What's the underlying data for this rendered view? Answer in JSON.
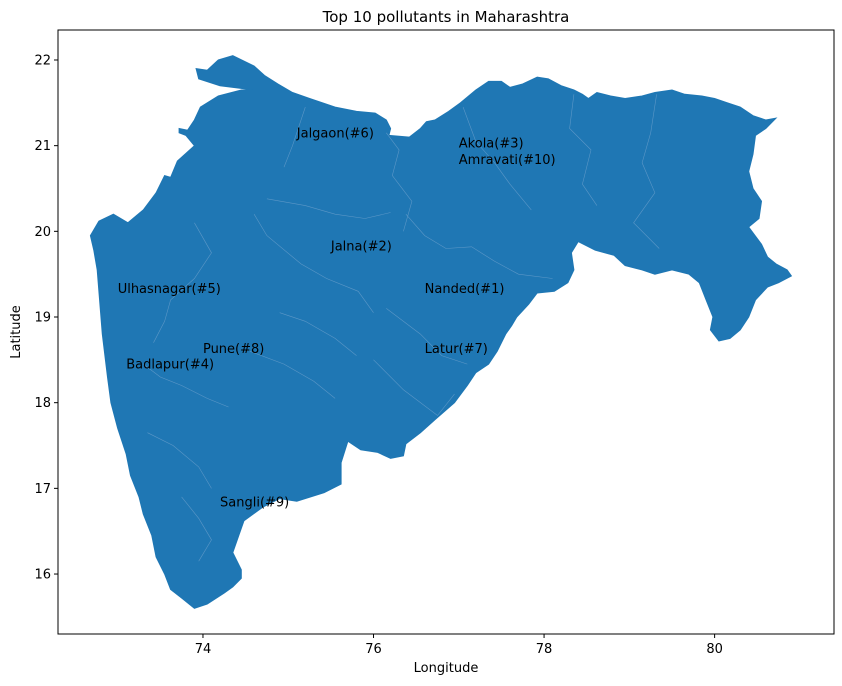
{
  "title": "Top 10 pollutants in Maharashtra",
  "xlabel": "Longitude",
  "ylabel": "Latitude",
  "colors": {
    "fill": "#1f77b4",
    "border": "#5b97c7",
    "axes": "#000000"
  },
  "map": {
    "xlim": [
      72.3,
      81.4
    ],
    "ylim": [
      15.3,
      22.35
    ],
    "outline": [
      [
        72.68,
        19.95
      ],
      [
        72.78,
        20.12
      ],
      [
        72.95,
        20.2
      ],
      [
        73.12,
        20.1
      ],
      [
        73.3,
        20.25
      ],
      [
        73.45,
        20.45
      ],
      [
        73.55,
        20.65
      ],
      [
        73.62,
        20.63
      ],
      [
        73.7,
        20.82
      ],
      [
        73.9,
        21.0
      ],
      [
        73.8,
        21.12
      ],
      [
        73.72,
        21.15
      ],
      [
        73.72,
        21.2
      ],
      [
        73.82,
        21.18
      ],
      [
        73.9,
        21.3
      ],
      [
        73.97,
        21.45
      ],
      [
        74.18,
        21.58
      ],
      [
        74.45,
        21.65
      ],
      [
        74.6,
        21.65
      ],
      [
        74.2,
        21.7
      ],
      [
        73.95,
        21.78
      ],
      [
        73.92,
        21.9
      ],
      [
        74.05,
        21.88
      ],
      [
        74.18,
        22.0
      ],
      [
        74.35,
        22.05
      ],
      [
        74.6,
        21.93
      ],
      [
        74.72,
        21.82
      ],
      [
        74.88,
        21.72
      ],
      [
        75.05,
        21.62
      ],
      [
        75.25,
        21.55
      ],
      [
        75.55,
        21.45
      ],
      [
        75.8,
        21.4
      ],
      [
        76.02,
        21.38
      ],
      [
        76.15,
        21.3
      ],
      [
        76.2,
        21.2
      ],
      [
        76.18,
        21.12
      ],
      [
        76.42,
        21.1
      ],
      [
        76.55,
        21.2
      ],
      [
        76.62,
        21.28
      ],
      [
        76.72,
        21.3
      ],
      [
        76.88,
        21.4
      ],
      [
        77.02,
        21.5
      ],
      [
        77.2,
        21.65
      ],
      [
        77.35,
        21.75
      ],
      [
        77.5,
        21.75
      ],
      [
        77.6,
        21.68
      ],
      [
        77.75,
        21.72
      ],
      [
        77.92,
        21.8
      ],
      [
        78.05,
        21.78
      ],
      [
        78.2,
        21.7
      ],
      [
        78.35,
        21.65
      ],
      [
        78.45,
        21.6
      ],
      [
        78.52,
        21.55
      ],
      [
        78.62,
        21.62
      ],
      [
        78.78,
        21.58
      ],
      [
        78.95,
        21.55
      ],
      [
        79.15,
        21.58
      ],
      [
        79.3,
        21.62
      ],
      [
        79.5,
        21.65
      ],
      [
        79.65,
        21.6
      ],
      [
        79.85,
        21.58
      ],
      [
        80.0,
        21.55
      ],
      [
        80.15,
        21.5
      ],
      [
        80.3,
        21.45
      ],
      [
        80.45,
        21.35
      ],
      [
        80.6,
        21.3
      ],
      [
        80.72,
        21.32
      ],
      [
        80.6,
        21.2
      ],
      [
        80.48,
        21.12
      ],
      [
        80.45,
        20.9
      ],
      [
        80.4,
        20.7
      ],
      [
        80.45,
        20.5
      ],
      [
        80.55,
        20.35
      ],
      [
        80.52,
        20.15
      ],
      [
        80.4,
        20.05
      ],
      [
        80.55,
        19.85
      ],
      [
        80.62,
        19.7
      ],
      [
        80.72,
        19.62
      ],
      [
        80.85,
        19.55
      ],
      [
        80.9,
        19.48
      ],
      [
        80.75,
        19.4
      ],
      [
        80.62,
        19.35
      ],
      [
        80.48,
        19.2
      ],
      [
        80.4,
        19.0
      ],
      [
        80.3,
        18.85
      ],
      [
        80.18,
        18.75
      ],
      [
        80.05,
        18.72
      ],
      [
        79.95,
        18.85
      ],
      [
        79.98,
        19.0
      ],
      [
        79.9,
        19.2
      ],
      [
        79.82,
        19.4
      ],
      [
        79.7,
        19.5
      ],
      [
        79.5,
        19.55
      ],
      [
        79.3,
        19.5
      ],
      [
        79.15,
        19.55
      ],
      [
        78.95,
        19.6
      ],
      [
        78.82,
        19.72
      ],
      [
        78.6,
        19.78
      ],
      [
        78.4,
        19.88
      ],
      [
        78.32,
        19.75
      ],
      [
        78.35,
        19.55
      ],
      [
        78.28,
        19.4
      ],
      [
        78.12,
        19.3
      ],
      [
        77.92,
        19.28
      ],
      [
        77.82,
        19.15
      ],
      [
        77.68,
        19.0
      ],
      [
        77.62,
        18.9
      ],
      [
        77.55,
        18.8
      ],
      [
        77.45,
        18.6
      ],
      [
        77.35,
        18.45
      ],
      [
        77.2,
        18.35
      ],
      [
        77.1,
        18.2
      ],
      [
        76.95,
        18.0
      ],
      [
        76.72,
        17.8
      ],
      [
        76.55,
        17.65
      ],
      [
        76.38,
        17.52
      ],
      [
        76.35,
        17.38
      ],
      [
        76.2,
        17.35
      ],
      [
        76.05,
        17.42
      ],
      [
        75.85,
        17.45
      ],
      [
        75.7,
        17.55
      ],
      [
        75.62,
        17.3
      ],
      [
        75.62,
        17.05
      ],
      [
        75.42,
        16.95
      ],
      [
        75.1,
        16.85
      ],
      [
        74.9,
        16.88
      ],
      [
        74.7,
        16.78
      ],
      [
        74.48,
        16.62
      ],
      [
        74.42,
        16.45
      ],
      [
        74.35,
        16.25
      ],
      [
        74.45,
        16.05
      ],
      [
        74.45,
        15.95
      ],
      [
        74.35,
        15.85
      ],
      [
        74.25,
        15.78
      ],
      [
        74.05,
        15.65
      ],
      [
        73.9,
        15.6
      ],
      [
        73.75,
        15.72
      ],
      [
        73.62,
        15.82
      ],
      [
        73.55,
        16.0
      ],
      [
        73.45,
        16.2
      ],
      [
        73.4,
        16.45
      ],
      [
        73.3,
        16.7
      ],
      [
        73.25,
        16.9
      ],
      [
        73.15,
        17.15
      ],
      [
        73.1,
        17.4
      ],
      [
        73.0,
        17.7
      ],
      [
        72.92,
        18.0
      ],
      [
        72.88,
        18.3
      ],
      [
        72.85,
        18.55
      ],
      [
        72.82,
        18.8
      ],
      [
        72.8,
        19.05
      ],
      [
        72.78,
        19.3
      ],
      [
        72.76,
        19.55
      ],
      [
        72.72,
        19.78
      ]
    ],
    "district_lines": [
      [
        [
          75.2,
          21.45
        ],
        [
          75.05,
          21.0
        ],
        [
          74.95,
          20.75
        ]
      ],
      [
        [
          76.15,
          21.15
        ],
        [
          76.3,
          20.95
        ],
        [
          76.22,
          20.65
        ],
        [
          76.45,
          20.35
        ],
        [
          76.35,
          20.0
        ]
      ],
      [
        [
          77.05,
          21.45
        ],
        [
          77.2,
          21.05
        ],
        [
          77.42,
          20.8
        ],
        [
          77.6,
          20.55
        ],
        [
          77.85,
          20.25
        ]
      ],
      [
        [
          78.35,
          21.6
        ],
        [
          78.3,
          21.2
        ],
        [
          78.55,
          20.95
        ],
        [
          78.45,
          20.55
        ],
        [
          78.62,
          20.3
        ]
      ],
      [
        [
          79.32,
          21.6
        ],
        [
          79.25,
          21.15
        ],
        [
          79.15,
          20.8
        ],
        [
          79.3,
          20.45
        ],
        [
          79.05,
          20.1
        ],
        [
          79.35,
          19.8
        ]
      ],
      [
        [
          76.38,
          20.2
        ],
        [
          76.6,
          19.95
        ],
        [
          76.85,
          19.8
        ],
        [
          77.15,
          19.82
        ],
        [
          77.42,
          19.65
        ],
        [
          77.7,
          19.5
        ],
        [
          78.1,
          19.45
        ]
      ],
      [
        [
          74.75,
          20.38
        ],
        [
          75.2,
          20.3
        ],
        [
          75.55,
          20.2
        ],
        [
          75.9,
          20.15
        ],
        [
          76.2,
          20.22
        ]
      ],
      [
        [
          73.9,
          20.1
        ],
        [
          74.1,
          19.75
        ],
        [
          73.9,
          19.45
        ],
        [
          73.62,
          19.2
        ],
        [
          73.55,
          18.95
        ],
        [
          73.42,
          18.7
        ]
      ],
      [
        [
          74.6,
          20.2
        ],
        [
          74.75,
          19.95
        ],
        [
          75.15,
          19.62
        ],
        [
          75.45,
          19.45
        ],
        [
          75.82,
          19.3
        ],
        [
          76.0,
          19.05
        ]
      ],
      [
        [
          74.9,
          19.05
        ],
        [
          75.2,
          18.95
        ],
        [
          75.55,
          18.75
        ],
        [
          75.8,
          18.55
        ]
      ],
      [
        [
          73.3,
          18.45
        ],
        [
          73.5,
          18.3
        ],
        [
          73.75,
          18.2
        ],
        [
          74.05,
          18.05
        ],
        [
          74.3,
          17.95
        ]
      ],
      [
        [
          73.35,
          17.65
        ],
        [
          73.65,
          17.5
        ],
        [
          73.95,
          17.25
        ],
        [
          74.1,
          17.0
        ]
      ],
      [
        [
          73.75,
          16.9
        ],
        [
          73.95,
          16.65
        ],
        [
          74.1,
          16.4
        ],
        [
          73.95,
          16.15
        ]
      ],
      [
        [
          76.0,
          18.5
        ],
        [
          76.35,
          18.15
        ],
        [
          76.75,
          17.85
        ],
        [
          76.95,
          18.1
        ]
      ],
      [
        [
          76.15,
          19.1
        ],
        [
          76.55,
          18.8
        ],
        [
          76.8,
          18.55
        ],
        [
          77.1,
          18.45
        ]
      ],
      [
        [
          74.55,
          18.6
        ],
        [
          74.95,
          18.45
        ],
        [
          75.3,
          18.25
        ],
        [
          75.55,
          18.05
        ]
      ]
    ],
    "x_ticks": [
      74,
      76,
      78,
      80
    ],
    "y_ticks": [
      16,
      17,
      18,
      19,
      20,
      21,
      22
    ]
  },
  "labels": [
    {
      "text": "Jalgaon(#6)",
      "lon": 75.1,
      "lat": 21.15
    },
    {
      "text": "Akola(#3)",
      "lon": 77.0,
      "lat": 21.03
    },
    {
      "text": "Amravati(#10)",
      "lon": 77.0,
      "lat": 20.84
    },
    {
      "text": "Jalna(#2)",
      "lon": 75.5,
      "lat": 19.83
    },
    {
      "text": "Ulhasnagar(#5)",
      "lon": 73.0,
      "lat": 19.33
    },
    {
      "text": "Nanded(#1)",
      "lon": 76.6,
      "lat": 19.33
    },
    {
      "text": "Pune(#8)",
      "lon": 74.0,
      "lat": 18.63
    },
    {
      "text": "Latur(#7)",
      "lon": 76.6,
      "lat": 18.63
    },
    {
      "text": "Badlapur(#4)",
      "lon": 73.1,
      "lat": 18.45
    },
    {
      "text": "Sangli(#9)",
      "lon": 74.2,
      "lat": 16.84
    }
  ]
}
